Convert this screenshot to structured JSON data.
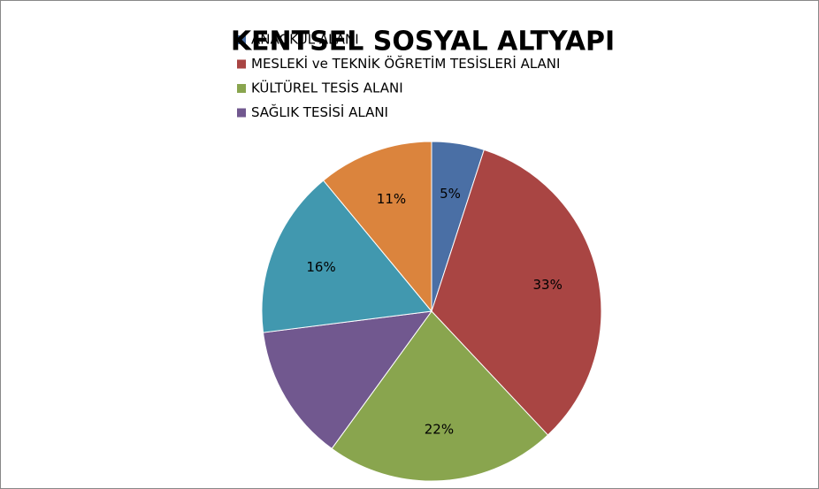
{
  "chart_data": {
    "type": "pie",
    "title": "KENTSEL SOSYAL ALTYAPI",
    "categories": [
      "ANAOKUL ALANI",
      "MESLEKİ ve TEKNİK ÖĞRETİM TESİSLERİ ALANI",
      "KÜLTÜREL TESİS ALANI",
      "SAĞLIK TESİSİ ALANI",
      null,
      null
    ],
    "values": [
      5,
      33,
      22,
      13,
      16,
      11
    ],
    "value_labels": [
      "5%",
      "33%",
      "22%",
      null,
      "16%",
      "11%"
    ],
    "colors": [
      "#4a6fa5",
      "#a94543",
      "#89a54e",
      "#71588f",
      "#4198af",
      "#db843d"
    ]
  }
}
